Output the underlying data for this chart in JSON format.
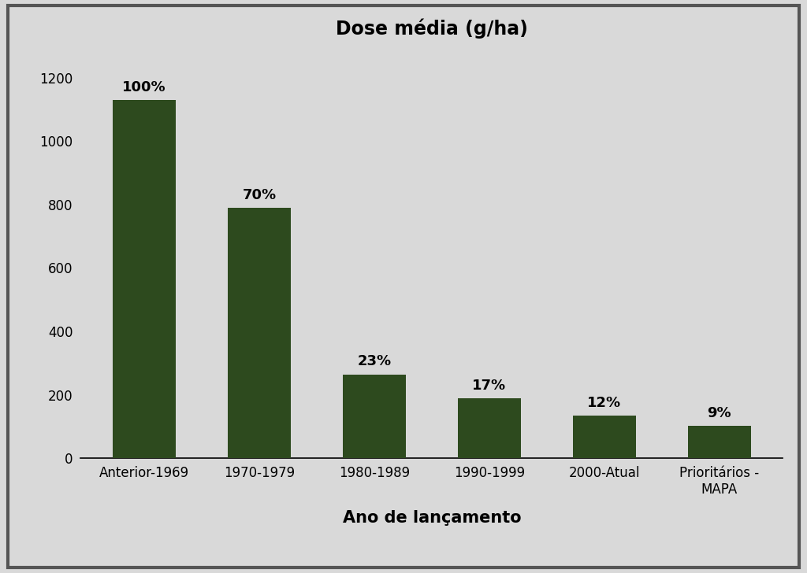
{
  "title": "Dose média (g/ha)",
  "xlabel": "Ano de lançamento",
  "categories": [
    "Anterior-1969",
    "1970-1979",
    "1980-1989",
    "1990-1999",
    "2000-Atual",
    "Prioritários -\nMAPA"
  ],
  "values": [
    1130,
    790,
    265,
    190,
    135,
    103
  ],
  "labels": [
    "100%",
    "70%",
    "23%",
    "17%",
    "12%",
    "9%"
  ],
  "bar_color": "#2d4a1e",
  "background_color": "#d9d9d9",
  "ylim": [
    0,
    1300
  ],
  "yticks": [
    0,
    200,
    400,
    600,
    800,
    1000,
    1200
  ],
  "title_fontsize": 17,
  "label_fontsize": 13,
  "tick_fontsize": 12,
  "xlabel_fontsize": 15,
  "bar_width": 0.55
}
